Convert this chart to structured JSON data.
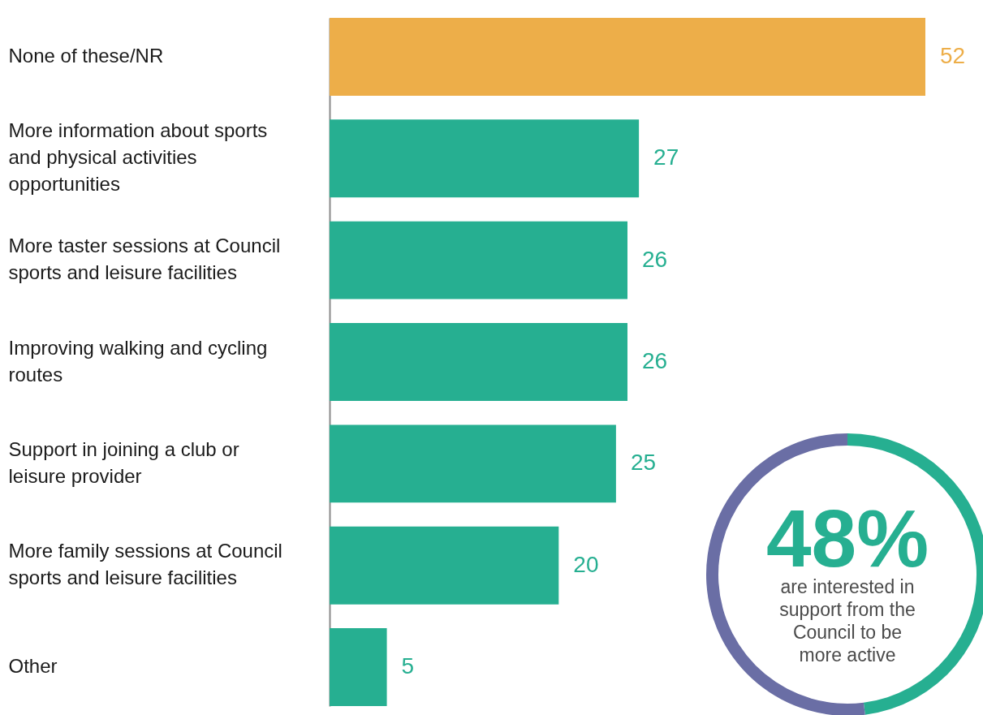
{
  "chart_data": [
    {
      "type": "bar",
      "orientation": "horizontal",
      "categories": [
        "None of these/NR",
        "More information about sports and physical activities opportunities",
        "More taster sessions at Council sports and leisure facilities",
        "Improving walking and cycling routes",
        "Support in joining a club or leisure provider",
        "More family sessions at Council sports and leisure facilities",
        "Other"
      ],
      "values": [
        52,
        27,
        26,
        26,
        25,
        20,
        5
      ],
      "colors": [
        "#edae49",
        "#26af91",
        "#26af91",
        "#26af91",
        "#26af91",
        "#26af91",
        "#26af91"
      ],
      "xlim": [
        0,
        52
      ],
      "data_labels": true,
      "tick_labels": "y"
    },
    {
      "type": "donut",
      "categories": [
        null,
        null
      ],
      "values": [
        48,
        52
      ],
      "colors": [
        "#26af91",
        "#6a6ea5"
      ],
      "annotations": [
        "48%",
        "are interested in support from the Council to be more active"
      ]
    }
  ]
}
